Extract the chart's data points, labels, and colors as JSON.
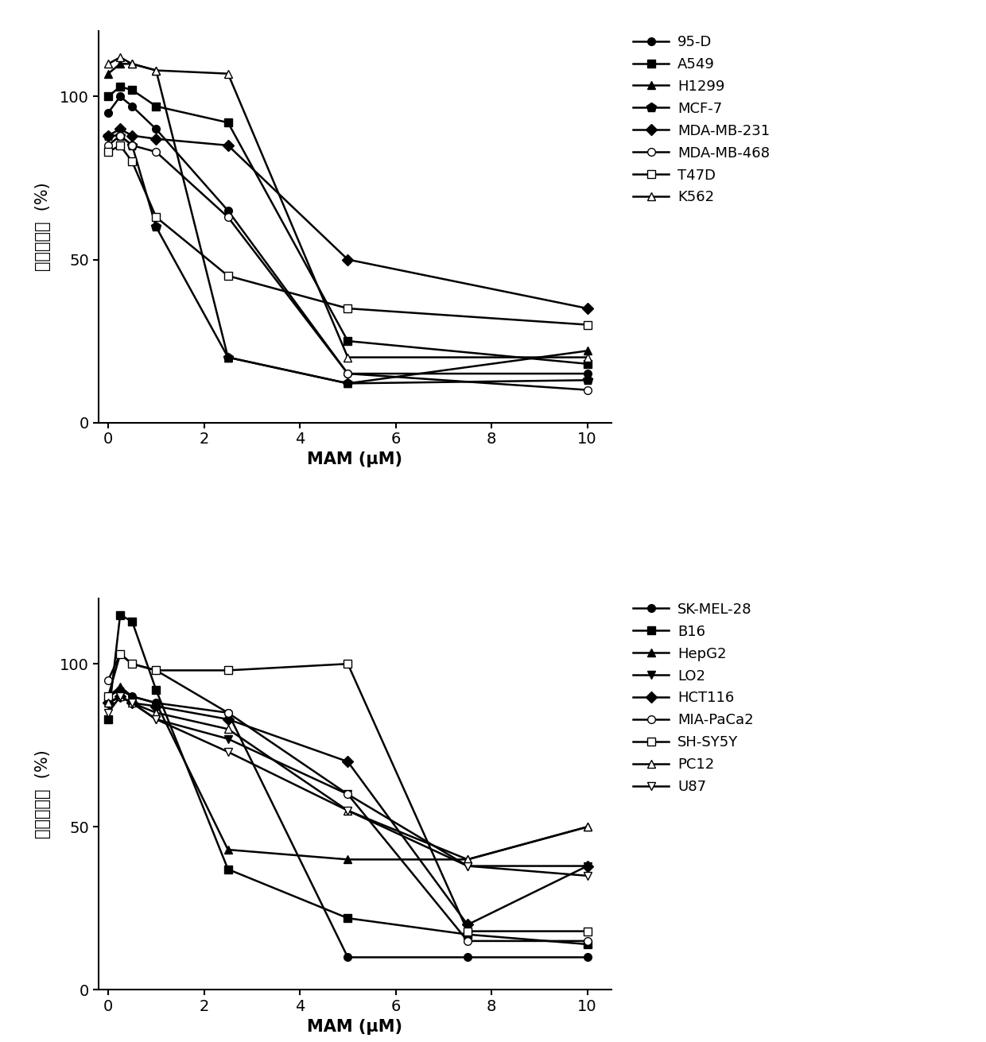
{
  "top_panel": {
    "series": [
      {
        "label": "95-D",
        "marker": "o",
        "fillstyle": "full",
        "x": [
          0,
          0.25,
          0.5,
          1,
          2.5,
          5,
          10
        ],
        "y": [
          95,
          100,
          97,
          90,
          65,
          15,
          15
        ]
      },
      {
        "label": "A549",
        "marker": "s",
        "fillstyle": "full",
        "x": [
          0,
          0.25,
          0.5,
          1,
          2.5,
          5,
          10
        ],
        "y": [
          100,
          103,
          102,
          97,
          92,
          25,
          18
        ]
      },
      {
        "label": "H1299",
        "marker": "^",
        "fillstyle": "full",
        "x": [
          0,
          0.25,
          0.5,
          1,
          2.5,
          5,
          10
        ],
        "y": [
          107,
          110,
          110,
          108,
          20,
          12,
          22
        ]
      },
      {
        "label": "MCF-7",
        "marker": "p",
        "fillstyle": "full",
        "x": [
          0,
          0.25,
          0.5,
          1,
          2.5,
          5,
          10
        ],
        "y": [
          88,
          88,
          85,
          60,
          20,
          12,
          13
        ]
      },
      {
        "label": "MDA-MB-231",
        "marker": "D",
        "fillstyle": "full",
        "x": [
          0,
          0.25,
          0.5,
          1,
          2.5,
          5,
          10
        ],
        "y": [
          88,
          90,
          88,
          87,
          85,
          50,
          35
        ]
      },
      {
        "label": "MDA-MB-468",
        "marker": "o",
        "fillstyle": "none",
        "x": [
          0,
          0.25,
          0.5,
          1,
          2.5,
          5,
          10
        ],
        "y": [
          85,
          88,
          85,
          83,
          63,
          15,
          10
        ]
      },
      {
        "label": "T47D",
        "marker": "s",
        "fillstyle": "none",
        "x": [
          0,
          0.25,
          0.5,
          1,
          2.5,
          5,
          10
        ],
        "y": [
          83,
          85,
          80,
          63,
          45,
          35,
          30
        ]
      },
      {
        "label": "K562",
        "marker": "^",
        "fillstyle": "none",
        "x": [
          0,
          0.25,
          0.5,
          1,
          2.5,
          5,
          10
        ],
        "y": [
          110,
          112,
          110,
          108,
          107,
          20,
          20
        ]
      }
    ],
    "xlabel": "MAM (μM)",
    "ylabel": "细胞存活率  (%)",
    "xlim": [
      -0.2,
      10.5
    ],
    "ylim": [
      0,
      120
    ],
    "yticks": [
      0,
      50,
      100
    ],
    "xticks": [
      0,
      2,
      4,
      6,
      8,
      10
    ]
  },
  "bottom_panel": {
    "series": [
      {
        "label": "SK-MEL-28",
        "marker": "o",
        "fillstyle": "full",
        "x": [
          0,
          0.25,
          0.5,
          1,
          2.5,
          5,
          7.5,
          10
        ],
        "y": [
          90,
          92,
          90,
          88,
          85,
          10,
          10,
          10
        ]
      },
      {
        "label": "B16",
        "marker": "s",
        "fillstyle": "full",
        "x": [
          0,
          0.25,
          0.5,
          1,
          2.5,
          5,
          7.5,
          10
        ],
        "y": [
          83,
          115,
          113,
          92,
          37,
          22,
          17,
          14
        ]
      },
      {
        "label": "HepG2",
        "marker": "^",
        "fillstyle": "full",
        "x": [
          0,
          0.25,
          0.5,
          1,
          2.5,
          5,
          7.5,
          10
        ],
        "y": [
          90,
          93,
          90,
          88,
          43,
          40,
          40,
          50
        ]
      },
      {
        "label": "LO2",
        "marker": "v",
        "fillstyle": "full",
        "x": [
          0,
          0.25,
          0.5,
          1,
          2.5,
          5,
          7.5,
          10
        ],
        "y": [
          88,
          90,
          88,
          83,
          77,
          60,
          38,
          38
        ]
      },
      {
        "label": "HCT116",
        "marker": "D",
        "fillstyle": "full",
        "x": [
          0,
          0.25,
          0.5,
          1,
          2.5,
          5,
          7.5,
          10
        ],
        "y": [
          88,
          90,
          88,
          87,
          83,
          70,
          20,
          38
        ]
      },
      {
        "label": "MIA-PaCa2",
        "marker": "o",
        "fillstyle": "none",
        "x": [
          0,
          0.25,
          0.5,
          1,
          2.5,
          5,
          7.5,
          10
        ],
        "y": [
          95,
          103,
          100,
          98,
          85,
          60,
          15,
          15
        ]
      },
      {
        "label": "SH-SY5Y",
        "marker": "s",
        "fillstyle": "none",
        "x": [
          0,
          0.25,
          0.5,
          1,
          2.5,
          5,
          7.5,
          10
        ],
        "y": [
          90,
          103,
          100,
          98,
          98,
          100,
          18,
          18
        ]
      },
      {
        "label": "PC12",
        "marker": "^",
        "fillstyle": "none",
        "x": [
          0,
          0.25,
          0.5,
          1,
          2.5,
          5,
          7.5,
          10
        ],
        "y": [
          88,
          90,
          88,
          85,
          80,
          55,
          40,
          50
        ]
      },
      {
        "label": "U87",
        "marker": "v",
        "fillstyle": "none",
        "x": [
          0,
          0.25,
          0.5,
          1,
          2.5,
          5,
          7.5,
          10
        ],
        "y": [
          85,
          90,
          88,
          83,
          73,
          55,
          38,
          35
        ]
      }
    ],
    "xlabel": "MAM (μM)",
    "ylabel": "细胞存活率  (%)",
    "xlim": [
      -0.2,
      10.5
    ],
    "ylim": [
      0,
      120
    ],
    "yticks": [
      0,
      50,
      100
    ],
    "xticks": [
      0,
      2,
      4,
      6,
      8,
      10
    ]
  },
  "line_color": "#000000",
  "line_width": 1.8,
  "marker_size": 7,
  "font_size": 14,
  "label_font_size": 15,
  "legend_font_size": 13
}
